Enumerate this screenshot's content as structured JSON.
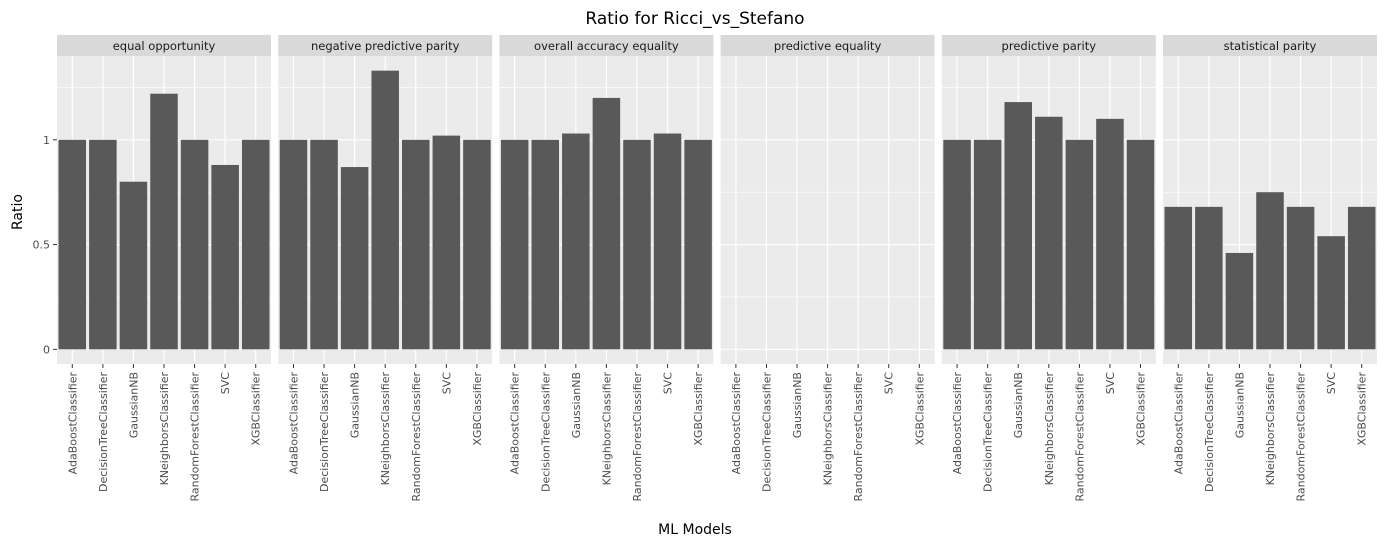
{
  "chart_data": {
    "type": "bar",
    "title": "Ratio for Ricci_vs_Stefano",
    "xlabel": "ML Models",
    "ylabel": "Ratio",
    "ylim": [
      -0.07,
      1.4
    ],
    "y_ticks": [
      0,
      0.5,
      1
    ],
    "y_tick_labels": [
      "0",
      "0.5",
      "1"
    ],
    "grid": true,
    "categories": [
      "AdaBoostClassifier",
      "DecisionTreeClassifier",
      "GaussianNB",
      "KNeighborsClassifier",
      "RandomForestClassifier",
      "SVC",
      "XGBClassifier"
    ],
    "facets": [
      {
        "name": "equal opportunity",
        "values": [
          1.0,
          1.0,
          0.8,
          1.22,
          1.0,
          0.88,
          1.0
        ]
      },
      {
        "name": "negative predictive parity",
        "values": [
          1.0,
          1.0,
          0.87,
          1.33,
          1.0,
          1.02,
          1.0
        ]
      },
      {
        "name": "overall accuracy equality",
        "values": [
          1.0,
          1.0,
          1.03,
          1.2,
          1.0,
          1.03,
          1.0
        ]
      },
      {
        "name": "predictive equality",
        "values": [
          null,
          null,
          null,
          null,
          null,
          null,
          null
        ]
      },
      {
        "name": "predictive parity",
        "values": [
          1.0,
          1.0,
          1.18,
          1.11,
          1.0,
          1.1,
          1.0
        ]
      },
      {
        "name": "statistical parity",
        "values": [
          0.68,
          0.68,
          0.46,
          0.75,
          0.68,
          0.54,
          0.68
        ]
      }
    ],
    "colors": {
      "bar": "#595959",
      "panel": "#ebebeb",
      "strip": "#d9d9d9",
      "grid": "#ffffff"
    }
  }
}
